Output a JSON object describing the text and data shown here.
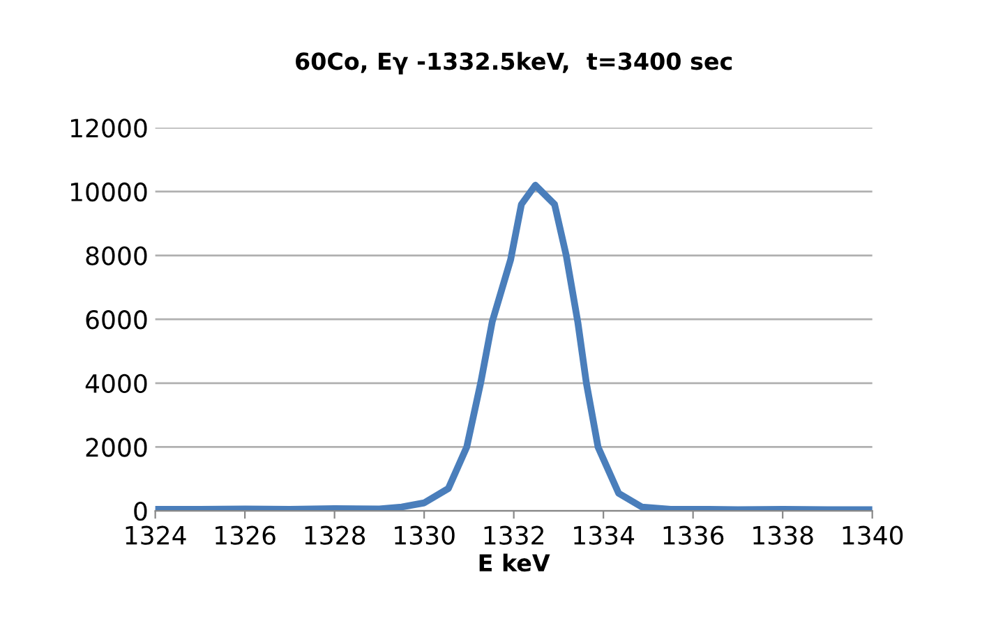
{
  "chart_data": {
    "type": "line",
    "title": "60Co, Eγ -1332.5keV,  t=3400 sec",
    "xlabel": "E keV",
    "x": [
      1324,
      1325,
      1326,
      1327,
      1328,
      1329,
      1329.5,
      1330,
      1330.54,
      1330.95,
      1331.26,
      1331.52,
      1331.93,
      1332.17,
      1332.48,
      1332.91,
      1333.17,
      1333.43,
      1333.62,
      1333.88,
      1334.34,
      1334.86,
      1335.5,
      1336,
      1337,
      1338,
      1339,
      1340
    ],
    "series": [
      {
        "color": "#4a7ebb",
        "values": [
          50,
          50,
          60,
          50,
          70,
          60,
          120,
          250,
          700,
          2000,
          4000,
          5930,
          7870,
          9600,
          10200,
          9600,
          8000,
          5900,
          4000,
          2000,
          550,
          120,
          50,
          50,
          40,
          50,
          40,
          40
        ]
      }
    ],
    "xlim": [
      1324,
      1340
    ],
    "xticks": [
      1324,
      1326,
      1328,
      1330,
      1332,
      1334,
      1336,
      1338,
      1340
    ],
    "ylim": [
      0,
      12000
    ],
    "yticks": [
      0,
      2000,
      4000,
      6000,
      8000,
      10000,
      12000
    ],
    "grid": "y",
    "marker": "none",
    "line_style": "solid",
    "legend": false
  }
}
